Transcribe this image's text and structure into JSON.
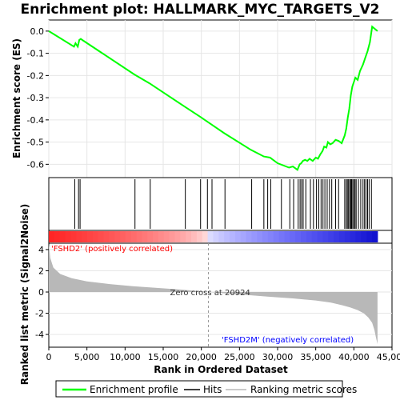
{
  "chart_data": {
    "type": "line",
    "title": "Enrichment plot: HALLMARK_MYC_TARGETS_V2",
    "xlabel": "Rank in Ordered Dataset",
    "ylabel_top": "Enrichment score (ES)",
    "ylabel_bottom": "Ranked list metric (Signal2Noise)",
    "xlim": [
      0,
      45000
    ],
    "x_ticks": [
      0,
      5000,
      10000,
      15000,
      20000,
      25000,
      30000,
      35000,
      40000,
      45000
    ],
    "x_tick_labels": [
      "0",
      "5,000",
      "10,000",
      "15,000",
      "20,000",
      "25,000",
      "30,000",
      "35,000",
      "40,000",
      "45,000"
    ],
    "es_ylim": [
      -0.66,
      0.05
    ],
    "es_ticks": [
      0.0,
      -0.1,
      -0.2,
      -0.3,
      -0.4,
      -0.5,
      -0.6
    ],
    "es_tick_labels": [
      "0.0",
      "-0.1",
      "-0.2",
      "-0.3",
      "-0.4",
      "-0.5",
      "-0.6"
    ],
    "metric_ylim": [
      -5.2,
      4.6
    ],
    "metric_ticks": [
      4,
      2,
      0,
      -2,
      -4
    ],
    "metric_tick_labels": [
      "4",
      "2",
      "0",
      "-2",
      "-4"
    ],
    "n_genes": 43100,
    "zero_cross": 20924,
    "zero_cross_label": "Zero cross at 20924",
    "positive_label": "'FSHD2' (positively correlated)",
    "negative_label": "'FSHD2M' (negatively correlated)",
    "series": [
      {
        "name": "Enrichment profile",
        "color": "#00ff00",
        "x": [
          0,
          3300,
          3500,
          3800,
          4000,
          4200,
          4400,
          11200,
          13200,
          17800,
          19800,
          21300,
          23000,
          26500,
          28200,
          29000,
          30000,
          31500,
          32000,
          32600,
          32900,
          33100,
          33300,
          33600,
          33900,
          34200,
          34600,
          35000,
          35300,
          35600,
          35900,
          36100,
          36400,
          36600,
          36900,
          37200,
          37600,
          38000,
          38400,
          38800,
          39000,
          39200,
          39400,
          39600,
          39800,
          40000,
          40200,
          40500,
          40800,
          41200,
          41500,
          41800,
          42100,
          42400,
          43100
        ],
        "y": [
          0.0,
          -0.07,
          -0.055,
          -0.07,
          -0.04,
          -0.035,
          -0.04,
          -0.195,
          -0.235,
          -0.34,
          -0.385,
          -0.42,
          -0.46,
          -0.535,
          -0.565,
          -0.57,
          -0.595,
          -0.615,
          -0.61,
          -0.625,
          -0.6,
          -0.595,
          -0.585,
          -0.58,
          -0.585,
          -0.575,
          -0.585,
          -0.57,
          -0.575,
          -0.555,
          -0.54,
          -0.52,
          -0.525,
          -0.5,
          -0.51,
          -0.505,
          -0.49,
          -0.495,
          -0.505,
          -0.47,
          -0.44,
          -0.39,
          -0.35,
          -0.29,
          -0.25,
          -0.23,
          -0.21,
          -0.22,
          -0.18,
          -0.15,
          -0.12,
          -0.09,
          -0.05,
          0.02,
          0.0
        ]
      },
      {
        "name": "Hits",
        "color": "#000000",
        "x": [
          3400,
          3900,
          4100,
          11300,
          13300,
          17900,
          19900,
          20800,
          21400,
          23100,
          26600,
          28200,
          28700,
          29100,
          30500,
          31600,
          32100,
          32700,
          32950,
          33150,
          33350,
          33700,
          34300,
          34700,
          35100,
          35400,
          35700,
          35950,
          36200,
          36500,
          36800,
          37100,
          37600,
          38000,
          38800,
          39000,
          39150,
          39300,
          39450,
          39600,
          39700,
          39850,
          40000,
          40150,
          40300,
          40600,
          40900,
          41200,
          41400,
          41600,
          41800,
          42000,
          42300
        ]
      },
      {
        "name": "Ranking metric scores",
        "color": "#b8b8b8",
        "x": [
          0,
          200,
          600,
          1500,
          3000,
          5000,
          8000,
          11000,
          14000,
          17000,
          19500,
          20924,
          23000,
          26000,
          29000,
          32000,
          35000,
          37000,
          38500,
          39500,
          40500,
          41300,
          41900,
          42400,
          42700,
          42900,
          43100
        ],
        "y": [
          4.5,
          3.2,
          2.3,
          1.7,
          1.3,
          1.0,
          0.75,
          0.55,
          0.4,
          0.25,
          0.1,
          0.0,
          -0.12,
          -0.28,
          -0.45,
          -0.6,
          -0.8,
          -1.0,
          -1.25,
          -1.45,
          -1.7,
          -2.0,
          -2.4,
          -2.9,
          -3.6,
          -4.3,
          -4.9
        ]
      }
    ],
    "colors": {
      "grid": "#e6e6e6",
      "zero_line": "#999999",
      "positive_text": "#ff0000",
      "negative_text": "#0000ff"
    }
  },
  "legend": {
    "items": [
      {
        "label": "Enrichment profile",
        "color": "#00ff00"
      },
      {
        "label": "Hits",
        "color": "#000000"
      },
      {
        "label": "Ranking metric scores",
        "color": "#b8b8b8"
      }
    ]
  }
}
